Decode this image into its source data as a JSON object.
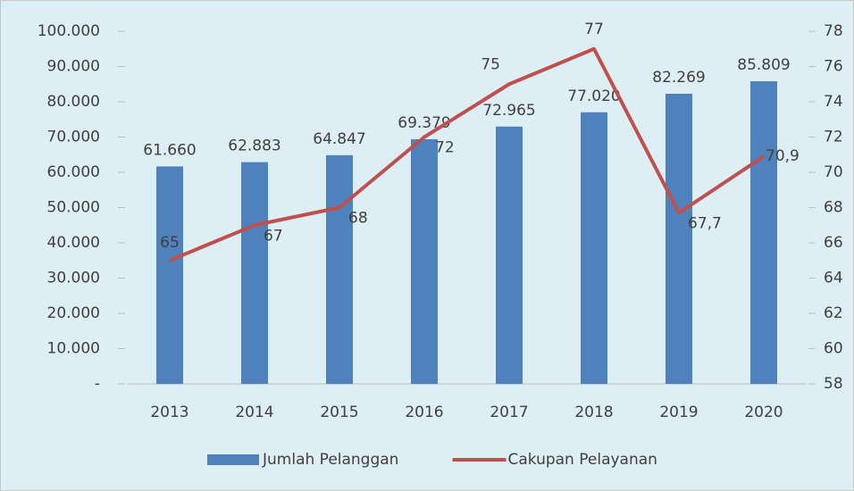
{
  "chart_data": {
    "type": "bar",
    "categories": [
      "2013",
      "2014",
      "2015",
      "2016",
      "2017",
      "2018",
      "2019",
      "2020"
    ],
    "series": [
      {
        "name": "Jumlah Pelanggan",
        "type": "bar",
        "color": "#4f81bd",
        "values": [
          61660,
          62883,
          64847,
          69379,
          72965,
          77020,
          82269,
          85809
        ],
        "value_labels": [
          "61.660",
          "62.883",
          "64.847",
          "69.379",
          "72.965",
          "77.020",
          "82.269",
          "85.809"
        ]
      },
      {
        "name": "Cakupan Pelayanan",
        "type": "line",
        "axis": "y2",
        "color": "#c0504d",
        "values": [
          65,
          67,
          68,
          72,
          75,
          77,
          67.7,
          70.9
        ],
        "value_labels": [
          "65",
          "67",
          "68",
          "72",
          "75",
          "77",
          "67,7",
          "70,9"
        ]
      }
    ],
    "ylim": [
      0,
      100000
    ],
    "yticks": [
      {
        "value": 0,
        "label": "-"
      },
      {
        "value": 10000,
        "label": "10.000"
      },
      {
        "value": 20000,
        "label": "20.000"
      },
      {
        "value": 30000,
        "label": "30.000"
      },
      {
        "value": 40000,
        "label": "40.000"
      },
      {
        "value": 50000,
        "label": "50.000"
      },
      {
        "value": 60000,
        "label": "60.000"
      },
      {
        "value": 70000,
        "label": "70.000"
      },
      {
        "value": 80000,
        "label": "80.000"
      },
      {
        "value": 90000,
        "label": "90.000"
      },
      {
        "value": 100000,
        "label": "100.000"
      }
    ],
    "y2lim": [
      58,
      78
    ],
    "y2ticks": [
      58,
      60,
      62,
      64,
      66,
      68,
      70,
      72,
      74,
      76,
      78
    ],
    "legend": "bottom"
  }
}
